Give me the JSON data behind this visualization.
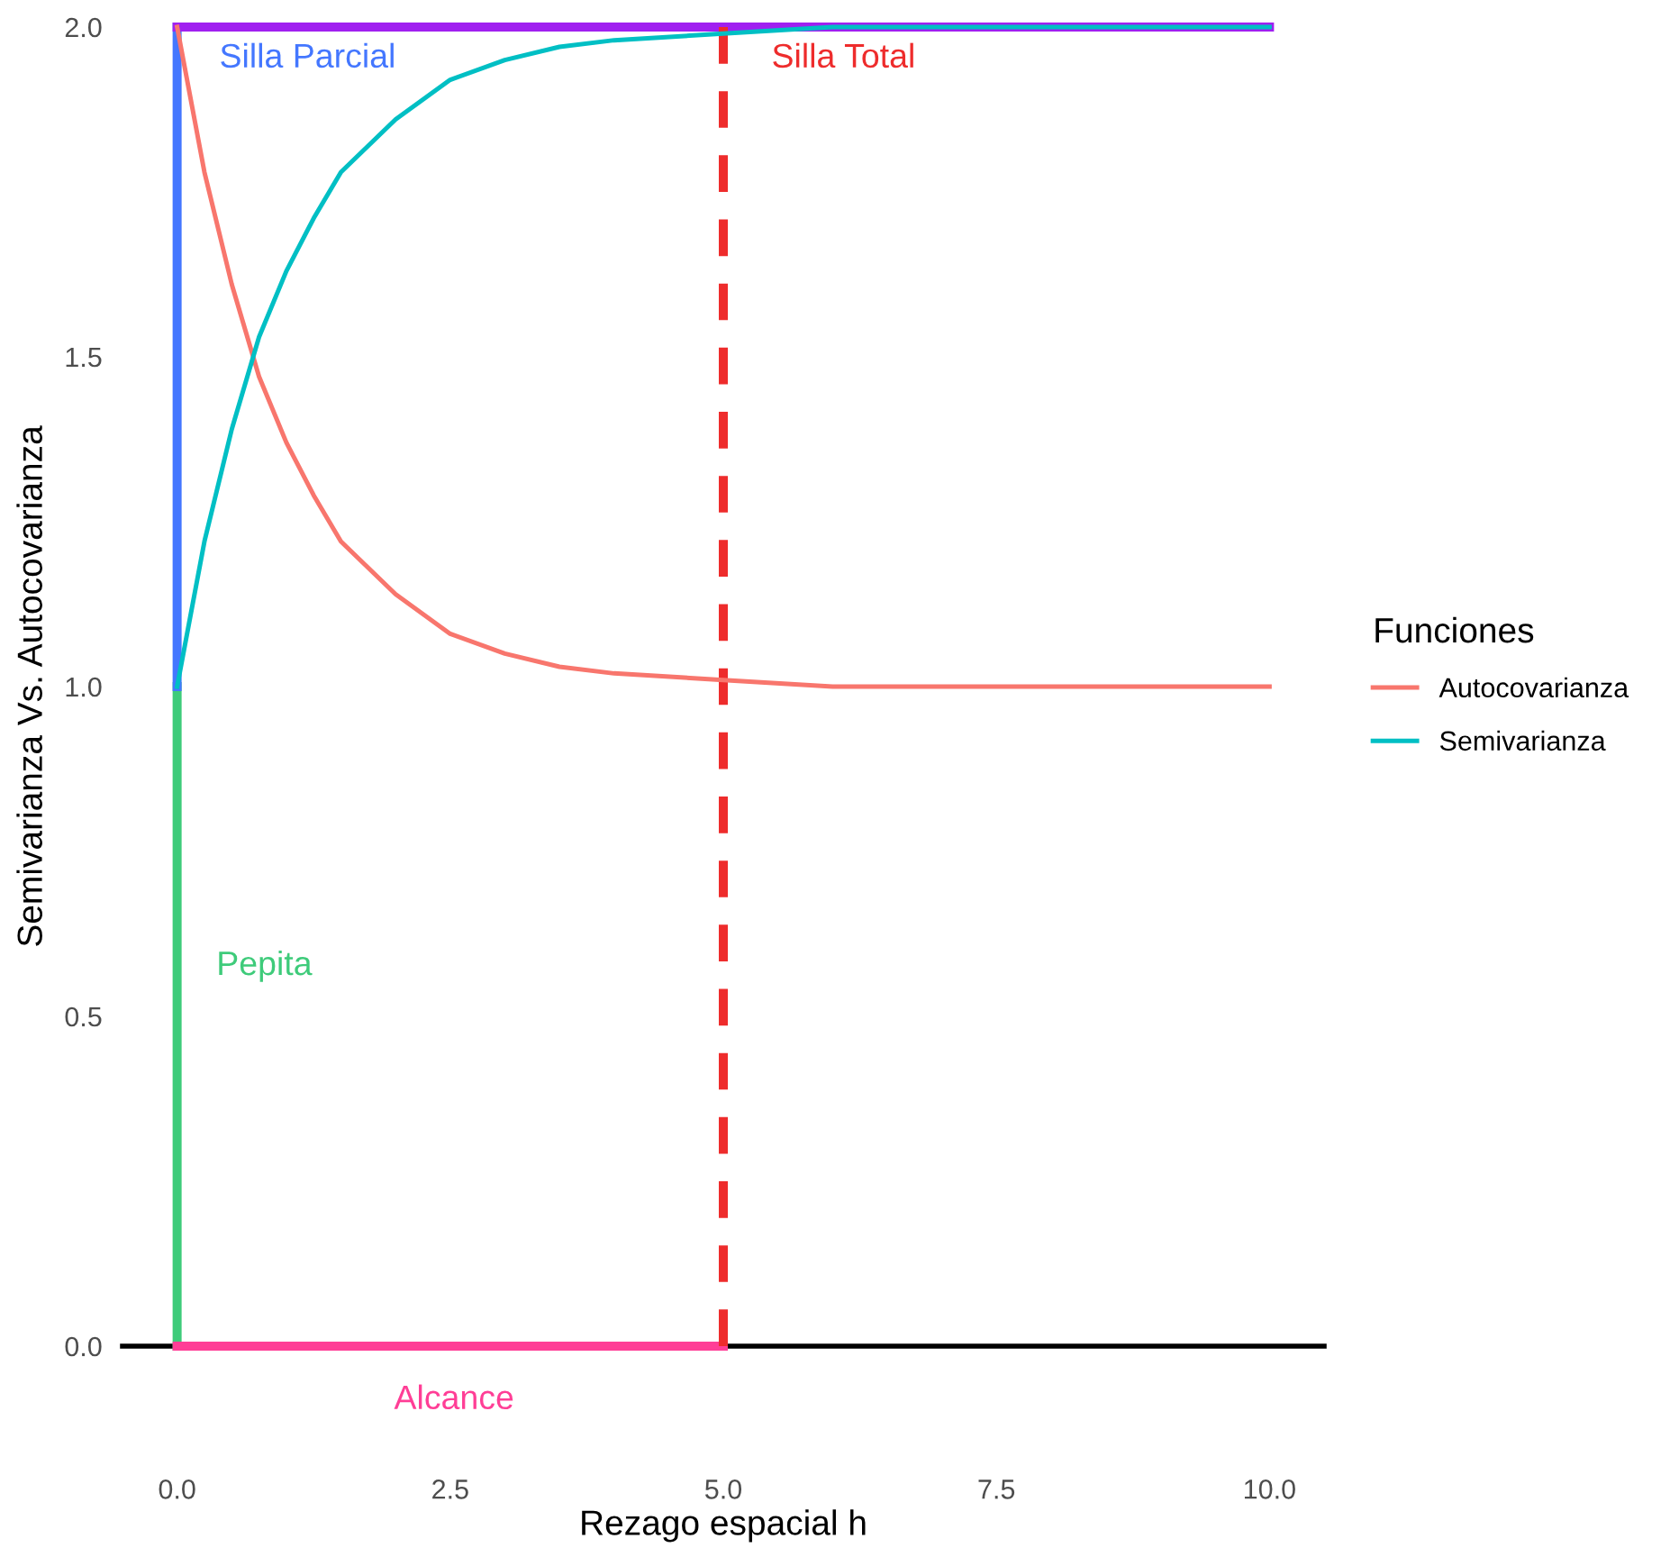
{
  "chart_data": {
    "type": "line",
    "xlabel": "Rezago espacial h",
    "ylabel": "Semivarianza Vs. Autocovarianza",
    "legend_title": "Funciones",
    "xlim": [
      -0.5,
      10.5
    ],
    "xticks": [
      {
        "value": 0,
        "label": "0.0"
      },
      2.5,
      {
        "value": 5,
        "label": "5.0"
      },
      7.5,
      {
        "value": 10,
        "label": "10.0"
      }
    ],
    "ylim": [
      0,
      2
    ],
    "yticks": [
      {
        "value": 0,
        "label": "0.0"
      },
      0.5,
      {
        "value": 1,
        "label": "1.0"
      },
      1.5,
      {
        "value": 2,
        "label": "2.0"
      }
    ],
    "grid": false,
    "legend": "right",
    "series": [
      {
        "name": "Autocovarianza",
        "color": "#f8766d",
        "x": [
          0,
          0.25,
          0.5,
          0.75,
          1,
          1.25,
          1.5,
          2,
          2.5,
          3,
          3.5,
          4,
          5,
          6,
          8,
          10
        ],
        "values": [
          2.0,
          1.78,
          1.61,
          1.47,
          1.37,
          1.29,
          1.22,
          1.14,
          1.08,
          1.05,
          1.03,
          1.02,
          1.01,
          1.0,
          1.0,
          1.0
        ]
      },
      {
        "name": "Semivarianza",
        "color": "#00bfc4",
        "x": [
          0,
          0.25,
          0.5,
          0.75,
          1,
          1.25,
          1.5,
          2,
          2.5,
          3,
          3.5,
          4,
          5,
          6,
          8,
          10
        ],
        "values": [
          1.0,
          1.22,
          1.39,
          1.53,
          1.63,
          1.71,
          1.78,
          1.86,
          1.92,
          1.95,
          1.97,
          1.98,
          1.99,
          2.0,
          2.0,
          2.0
        ]
      },
      {
        "color": "#3ecb7a",
        "x": [
          0,
          0
        ],
        "values": [
          0,
          1
        ]
      },
      {
        "color": "#4477ff",
        "x": [
          0,
          0
        ],
        "values": [
          1,
          2
        ]
      },
      {
        "color": "#a020f0",
        "x": [
          0,
          10
        ],
        "values": [
          2,
          2
        ]
      },
      {
        "color": "#ff3e96",
        "x": [
          0,
          5
        ],
        "values": [
          0,
          0
        ]
      },
      {
        "color": "#ee2c2c",
        "x": [
          5,
          5
        ],
        "values": [
          2,
          0
        ],
        "line_style": "dashed"
      }
    ],
    "ref_lines": [
      {
        "axis": "y",
        "value": 0,
        "color": "#000000"
      }
    ],
    "annotations": [
      "Silla Parcial",
      "Silla Total",
      "Pepita",
      "Alcance"
    ]
  }
}
